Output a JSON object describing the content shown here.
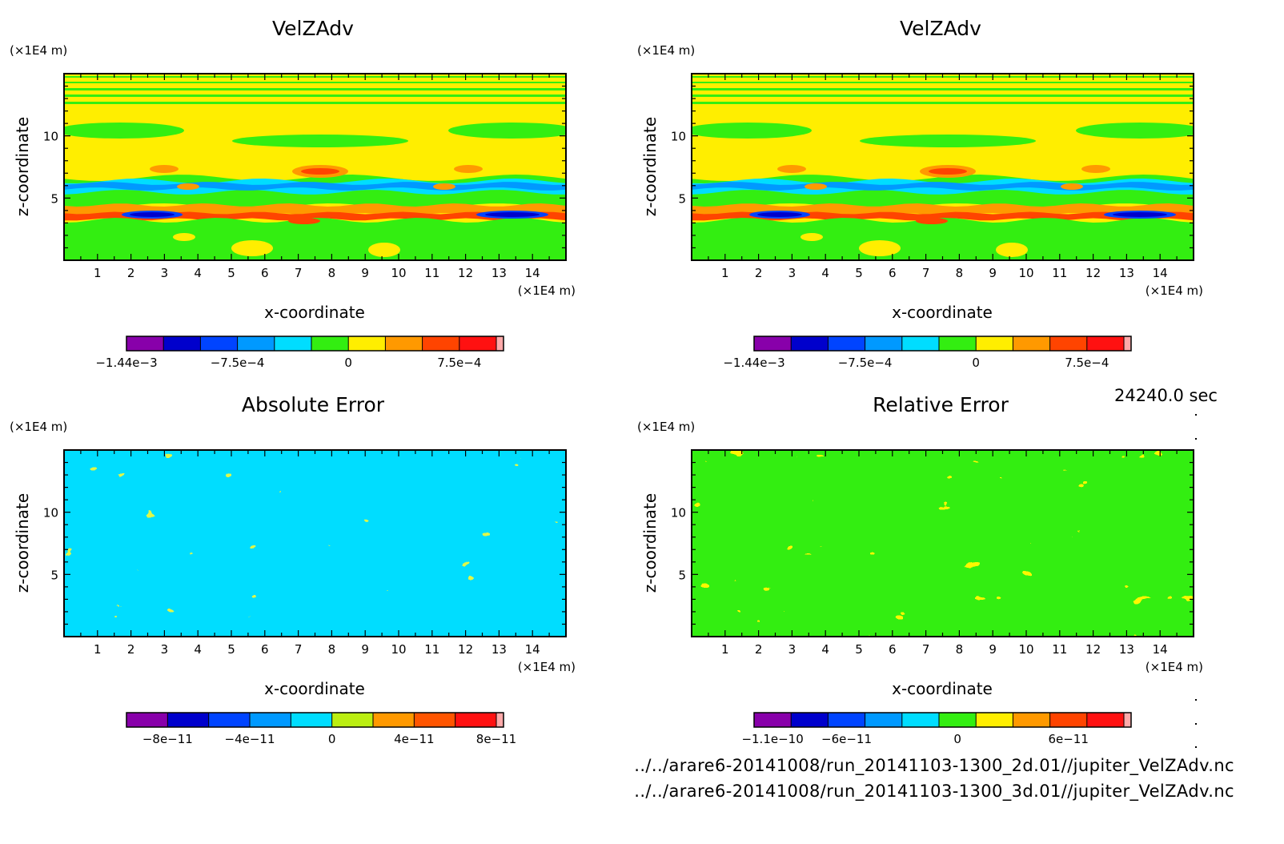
{
  "time_label": "24240.0 sec",
  "footer": {
    "file_2d": "../../arare6-20141008/run_20141103-1300_2d.01//jupiter_VelZAdv.nc",
    "file_3d": "../../arare6-20141008/run_20141103-1300_3d.01//jupiter_VelZAdv.nc"
  },
  "chart_data": [
    {
      "type": "heatmap",
      "title": "VelZAdv",
      "xlabel": "x-coordinate",
      "ylabel": "z-coordinate",
      "x_unit": "(×1E4 m)",
      "y_unit": "(×1E4 m)",
      "xlim": [
        0,
        15
      ],
      "ylim": [
        0,
        15
      ],
      "x_ticks": [
        1,
        2,
        3,
        4,
        5,
        6,
        7,
        8,
        9,
        10,
        11,
        12,
        13,
        14
      ],
      "y_ticks": [
        5,
        10
      ],
      "colorbar": {
        "colors": [
          "#8800aa",
          "#0000cc",
          "#0044ff",
          "#0099ff",
          "#00ddff",
          "#33ee11",
          "#ffee00",
          "#ff9900",
          "#ff4400",
          "#ff1111",
          "#ffaaaa"
        ],
        "tick_labels": [
          "−1.44e−3",
          "−7.5e−4",
          "0",
          "7.5e−4"
        ],
        "tick_boundaries": [
          0,
          3,
          6,
          9
        ]
      }
    },
    {
      "type": "heatmap",
      "title": "VelZAdv",
      "xlabel": "x-coordinate",
      "ylabel": "z-coordinate",
      "x_unit": "(×1E4 m)",
      "y_unit": "(×1E4 m)",
      "xlim": [
        0,
        15
      ],
      "ylim": [
        0,
        15
      ],
      "x_ticks": [
        1,
        2,
        3,
        4,
        5,
        6,
        7,
        8,
        9,
        10,
        11,
        12,
        13,
        14
      ],
      "y_ticks": [
        5,
        10
      ],
      "colorbar": {
        "colors": [
          "#8800aa",
          "#0000cc",
          "#0044ff",
          "#0099ff",
          "#00ddff",
          "#33ee11",
          "#ffee00",
          "#ff9900",
          "#ff4400",
          "#ff1111",
          "#ffaaaa"
        ],
        "tick_labels": [
          "−1.44e−3",
          "−7.5e−4",
          "0",
          "7.5e−4"
        ],
        "tick_boundaries": [
          0,
          3,
          6,
          9
        ]
      }
    },
    {
      "type": "heatmap",
      "title": "Absolute Error",
      "xlabel": "x-coordinate",
      "ylabel": "z-coordinate",
      "x_unit": "(×1E4 m)",
      "y_unit": "(×1E4 m)",
      "xlim": [
        0,
        15
      ],
      "ylim": [
        0,
        15
      ],
      "x_ticks": [
        1,
        2,
        3,
        4,
        5,
        6,
        7,
        8,
        9,
        10,
        11,
        12,
        13,
        14
      ],
      "y_ticks": [
        5,
        10
      ],
      "colorbar": {
        "colors": [
          "#8800aa",
          "#0000cc",
          "#0044ff",
          "#0099ff",
          "#00ddff",
          "#bbee11",
          "#ff9900",
          "#ff5500",
          "#ff1111",
          "#ffaaaa"
        ],
        "tick_labels": [
          "−8e−11",
          "−4e−11",
          "0",
          "4e−11",
          "8e−11"
        ],
        "tick_boundaries": [
          1,
          3,
          5,
          7,
          9
        ]
      }
    },
    {
      "type": "heatmap",
      "title": "Relative Error",
      "xlabel": "x-coordinate",
      "ylabel": "z-coordinate",
      "x_unit": "(×1E4 m)",
      "y_unit": "(×1E4 m)",
      "xlim": [
        0,
        15
      ],
      "ylim": [
        0,
        15
      ],
      "x_ticks": [
        1,
        2,
        3,
        4,
        5,
        6,
        7,
        8,
        9,
        10,
        11,
        12,
        13,
        14
      ],
      "y_ticks": [
        5,
        10
      ],
      "colorbar": {
        "colors": [
          "#8800aa",
          "#0000cc",
          "#0044ff",
          "#0099ff",
          "#00ddff",
          "#33ee11",
          "#ffee00",
          "#ff9900",
          "#ff4400",
          "#ff1111",
          "#ffaaaa"
        ],
        "tick_labels": [
          "−1.1e−10",
          "−6e−11",
          "0",
          "6e−11"
        ],
        "tick_boundaries": [
          0.5,
          2.5,
          5.5,
          8.5
        ]
      }
    }
  ]
}
